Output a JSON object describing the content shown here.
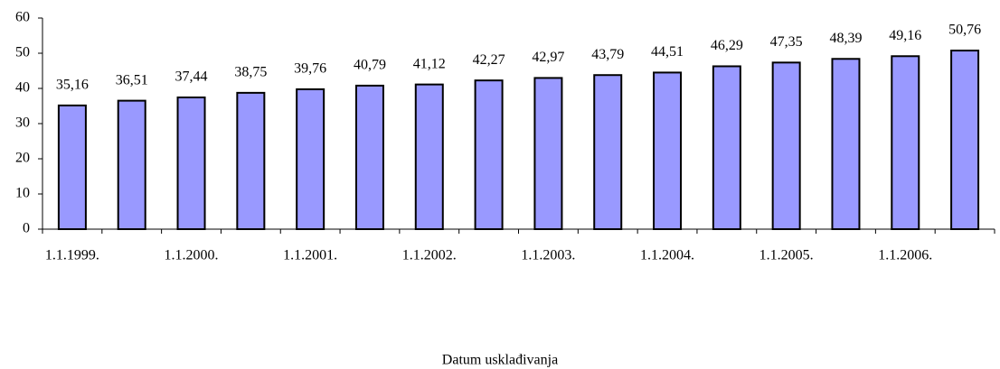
{
  "chart_data": {
    "type": "bar",
    "xlabel": "Datum usklađivanja",
    "categories": [
      "1.1.1999.",
      null,
      "1.1.2000.",
      null,
      "1.1.2001.",
      null,
      "1.1.2002.",
      null,
      "1.1.2003.",
      null,
      "1.1.2004.",
      null,
      "1.1.2005.",
      null,
      "1.1.2006.",
      null
    ],
    "values": [
      35.16,
      36.51,
      37.44,
      38.75,
      39.76,
      40.79,
      41.12,
      42.27,
      42.97,
      43.79,
      44.51,
      46.29,
      47.35,
      48.39,
      49.16,
      50.76
    ],
    "value_labels": [
      "35,16",
      "36,51",
      "37,44",
      "38,75",
      "39,76",
      "40,79",
      "41,12",
      "42,27",
      "42,97",
      "43,79",
      "44,51",
      "46,29",
      "47,35",
      "48,39",
      "49,16",
      "50,76"
    ],
    "color": "#9999ff",
    "ylim": [
      0,
      60
    ],
    "yticks": [
      0,
      10,
      20,
      30,
      40,
      50,
      60
    ],
    "grid": false
  }
}
